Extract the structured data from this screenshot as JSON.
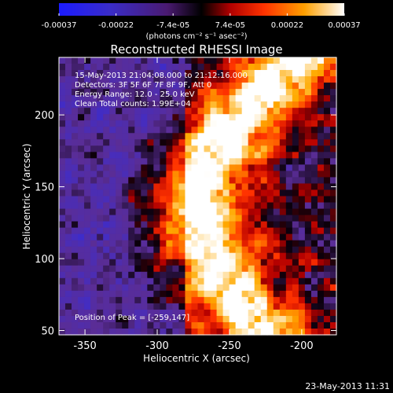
{
  "colorbar": {
    "ticks": [
      "-0.00037",
      "-0.00022",
      "-7.4e-05",
      "7.4e-05",
      "0.00022",
      "0.00037"
    ],
    "unit_label": "(photons cm⁻² s⁻¹ asec⁻²)",
    "range": [
      -0.00037,
      0.00037
    ]
  },
  "chart_data": {
    "type": "heatmap",
    "title": "Reconstructed RHESSI Image",
    "xlabel": "Heliocentric X (arcsec)",
    "ylabel": "Heliocentric Y (arcsec)",
    "xlim": [
      -368,
      -176
    ],
    "ylim": [
      47,
      240
    ],
    "xticks": [
      -350,
      -300,
      -250,
      -200
    ],
    "yticks": [
      50,
      100,
      150,
      200
    ],
    "colormap": "black-purple-blue-red-orange-yellow-white",
    "annotations": [
      "15-May-2013 21:04:08.000 to 21:12:16.000",
      "Detectors: 3F 5F 6F 7F 8F 9F, Att 0",
      "Energy Range: 12.0 - 25.0 keV",
      "Clean    Total counts: 1.99E+04"
    ],
    "peak_label": "Position of Peak = [-259,147]",
    "peak": [
      -259,
      147
    ]
  },
  "timestamp": "23-May-2013 11:31"
}
